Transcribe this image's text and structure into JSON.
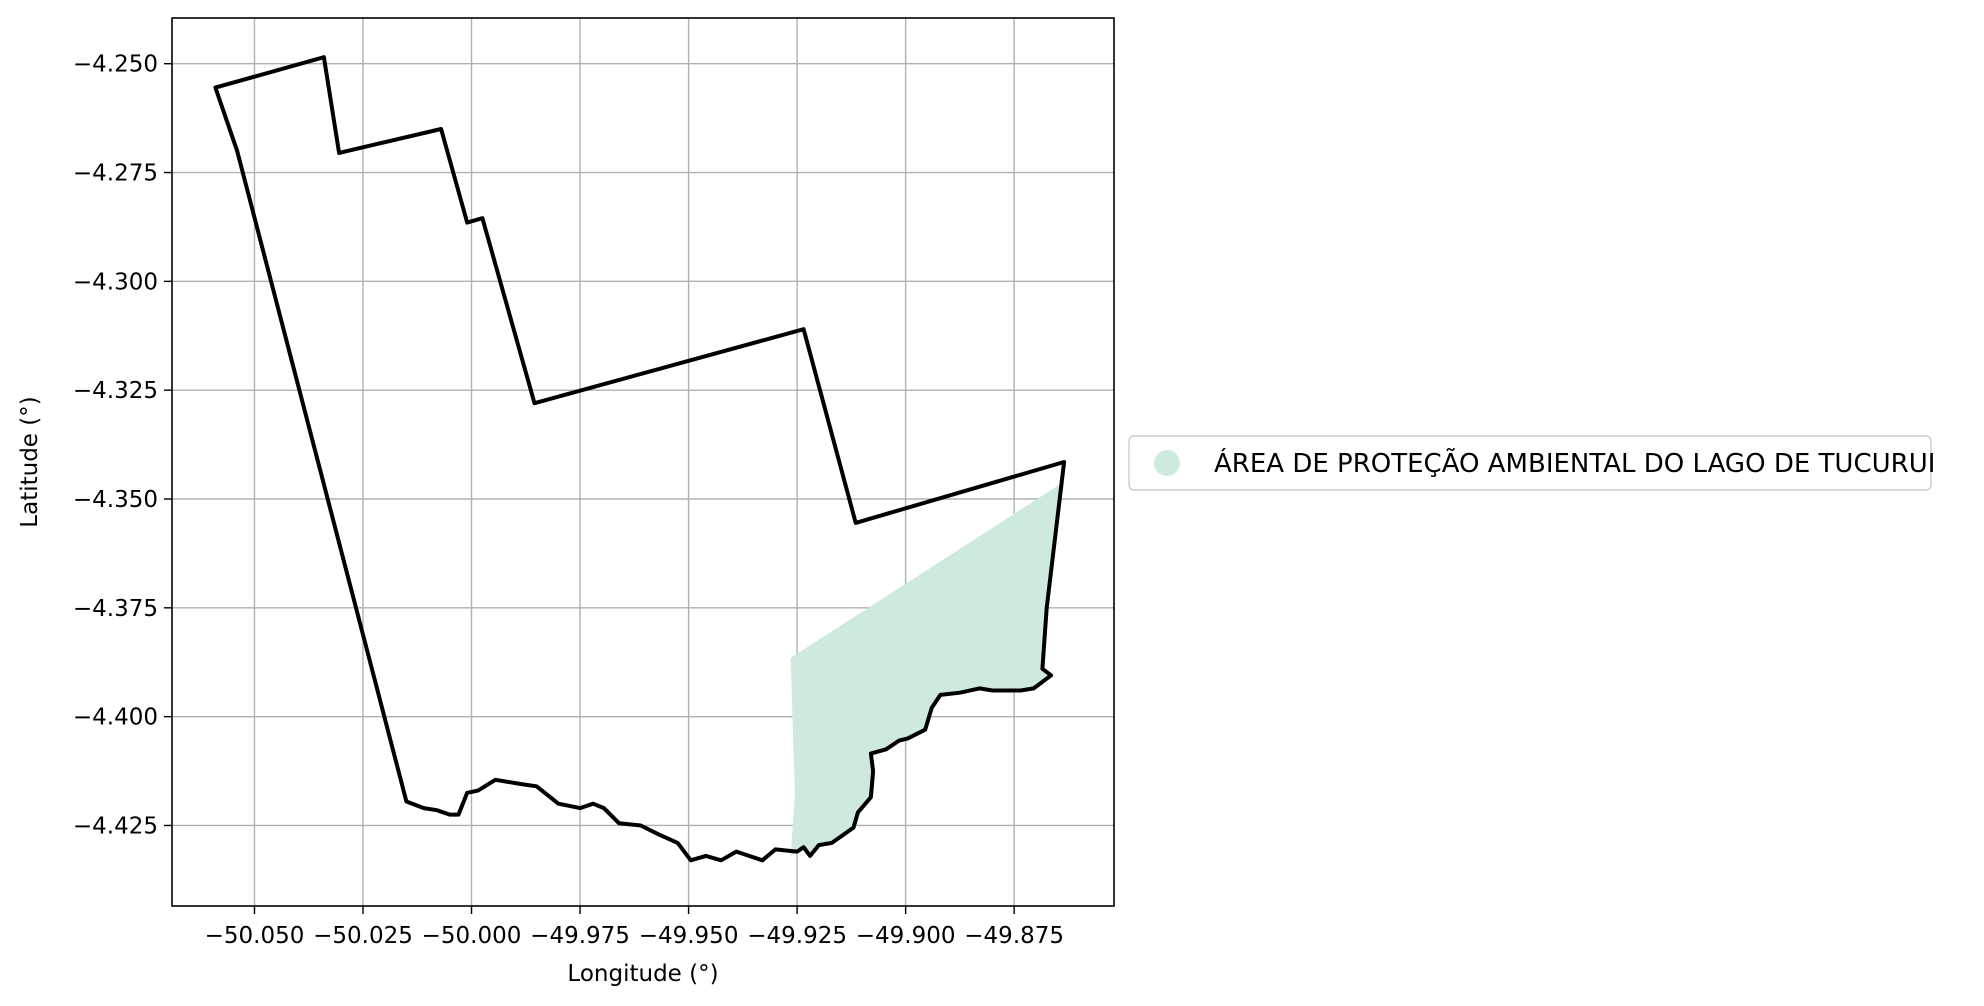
{
  "chart_data": {
    "type": "map",
    "xlabel": "Longitude (°)",
    "ylabel": "Latitude (°)",
    "xlim": [
      -50.069,
      -49.852
    ],
    "ylim": [
      -4.4435,
      -4.2395
    ],
    "grid": true,
    "xticks": [
      -50.05,
      -50.025,
      -50.0,
      -49.975,
      -49.95,
      -49.925,
      -49.9,
      -49.875
    ],
    "xtick_labels": [
      "−50.050",
      "−50.025",
      "−50.000",
      "−49.975",
      "−49.950",
      "−49.925",
      "−49.900",
      "−49.875"
    ],
    "yticks": [
      -4.25,
      -4.275,
      -4.3,
      -4.325,
      -4.35,
      -4.375,
      -4.4,
      -4.425
    ],
    "ytick_labels": [
      "−4.250",
      "−4.275",
      "−4.300",
      "−4.325",
      "−4.350",
      "−4.375",
      "−4.400",
      "−4.425"
    ],
    "legend": {
      "placement": "right",
      "entries": [
        {
          "label": "ÁREA DE PROTEÇÃO AMBIENTAL DO LAGO DE TUCURUI",
          "color": "#cdeadc"
        }
      ]
    },
    "layers": [
      {
        "name": "ÁREA DE PROTEÇÃO AMBIENTAL DO LAGO DE TUCURUI",
        "kind": "filled-polygon",
        "fill": "#cdeadc",
        "coords": [
          [
            -49.9265,
            -4.3865
          ],
          [
            -49.8635,
            -4.346
          ],
          [
            -49.8675,
            -4.375
          ],
          [
            -49.8685,
            -4.389
          ],
          [
            -49.8665,
            -4.3905
          ],
          [
            -49.8705,
            -4.3935
          ],
          [
            -49.8735,
            -4.394
          ],
          [
            -49.88,
            -4.394
          ],
          [
            -49.883,
            -4.3935
          ],
          [
            -49.8875,
            -4.3945
          ],
          [
            -49.892,
            -4.395
          ],
          [
            -49.894,
            -4.398
          ],
          [
            -49.8955,
            -4.403
          ],
          [
            -49.8995,
            -4.405
          ],
          [
            -49.9015,
            -4.4055
          ],
          [
            -49.9045,
            -4.4075
          ],
          [
            -49.908,
            -4.4085
          ],
          [
            -49.9075,
            -4.4125
          ],
          [
            -49.908,
            -4.4185
          ],
          [
            -49.911,
            -4.422
          ],
          [
            -49.912,
            -4.4255
          ],
          [
            -49.917,
            -4.429
          ],
          [
            -49.92,
            -4.4295
          ],
          [
            -49.922,
            -4.432
          ],
          [
            -49.9235,
            -4.43
          ],
          [
            -49.925,
            -4.431
          ],
          [
            -49.9265,
            -4.432
          ],
          [
            -49.9255,
            -4.418
          ]
        ]
      },
      {
        "name": "boundary",
        "kind": "outline",
        "stroke": "#000000",
        "coords": [
          [
            -50.059,
            -4.2555
          ],
          [
            -50.034,
            -4.2485
          ],
          [
            -50.0305,
            -4.2705
          ],
          [
            -50.007,
            -4.265
          ],
          [
            -50.001,
            -4.2865
          ],
          [
            -49.9975,
            -4.2855
          ],
          [
            -49.9855,
            -4.328
          ],
          [
            -49.9235,
            -4.311
          ],
          [
            -49.9115,
            -4.3555
          ],
          [
            -49.8635,
            -4.3415
          ],
          [
            -49.8675,
            -4.375
          ],
          [
            -49.8685,
            -4.389
          ],
          [
            -49.8665,
            -4.3905
          ],
          [
            -49.8705,
            -4.3935
          ],
          [
            -49.8735,
            -4.394
          ],
          [
            -49.88,
            -4.394
          ],
          [
            -49.883,
            -4.3935
          ],
          [
            -49.8875,
            -4.3945
          ],
          [
            -49.892,
            -4.395
          ],
          [
            -49.894,
            -4.398
          ],
          [
            -49.8955,
            -4.403
          ],
          [
            -49.8995,
            -4.405
          ],
          [
            -49.9015,
            -4.4055
          ],
          [
            -49.9045,
            -4.4075
          ],
          [
            -49.908,
            -4.4085
          ],
          [
            -49.9075,
            -4.4125
          ],
          [
            -49.908,
            -4.4185
          ],
          [
            -49.911,
            -4.422
          ],
          [
            -49.912,
            -4.4255
          ],
          [
            -49.917,
            -4.429
          ],
          [
            -49.92,
            -4.4295
          ],
          [
            -49.922,
            -4.432
          ],
          [
            -49.9235,
            -4.43
          ],
          [
            -49.925,
            -4.431
          ],
          [
            -49.93,
            -4.4305
          ],
          [
            -49.933,
            -4.433
          ],
          [
            -49.939,
            -4.431
          ],
          [
            -49.9425,
            -4.433
          ],
          [
            -49.946,
            -4.432
          ],
          [
            -49.9495,
            -4.433
          ],
          [
            -49.9525,
            -4.429
          ],
          [
            -49.957,
            -4.427
          ],
          [
            -49.961,
            -4.425
          ],
          [
            -49.966,
            -4.4245
          ],
          [
            -49.9695,
            -4.421
          ],
          [
            -49.972,
            -4.42
          ],
          [
            -49.975,
            -4.421
          ],
          [
            -49.98,
            -4.42
          ],
          [
            -49.985,
            -4.416
          ],
          [
            -49.9885,
            -4.4155
          ],
          [
            -49.9945,
            -4.4145
          ],
          [
            -49.9985,
            -4.417
          ],
          [
            -50.001,
            -4.4175
          ],
          [
            -50.003,
            -4.4225
          ],
          [
            -50.005,
            -4.4225
          ],
          [
            -50.008,
            -4.4215
          ],
          [
            -50.011,
            -4.421
          ],
          [
            -50.015,
            -4.4195
          ],
          [
            -50.054,
            -4.27
          ],
          [
            -50.059,
            -4.2555
          ]
        ]
      }
    ]
  }
}
